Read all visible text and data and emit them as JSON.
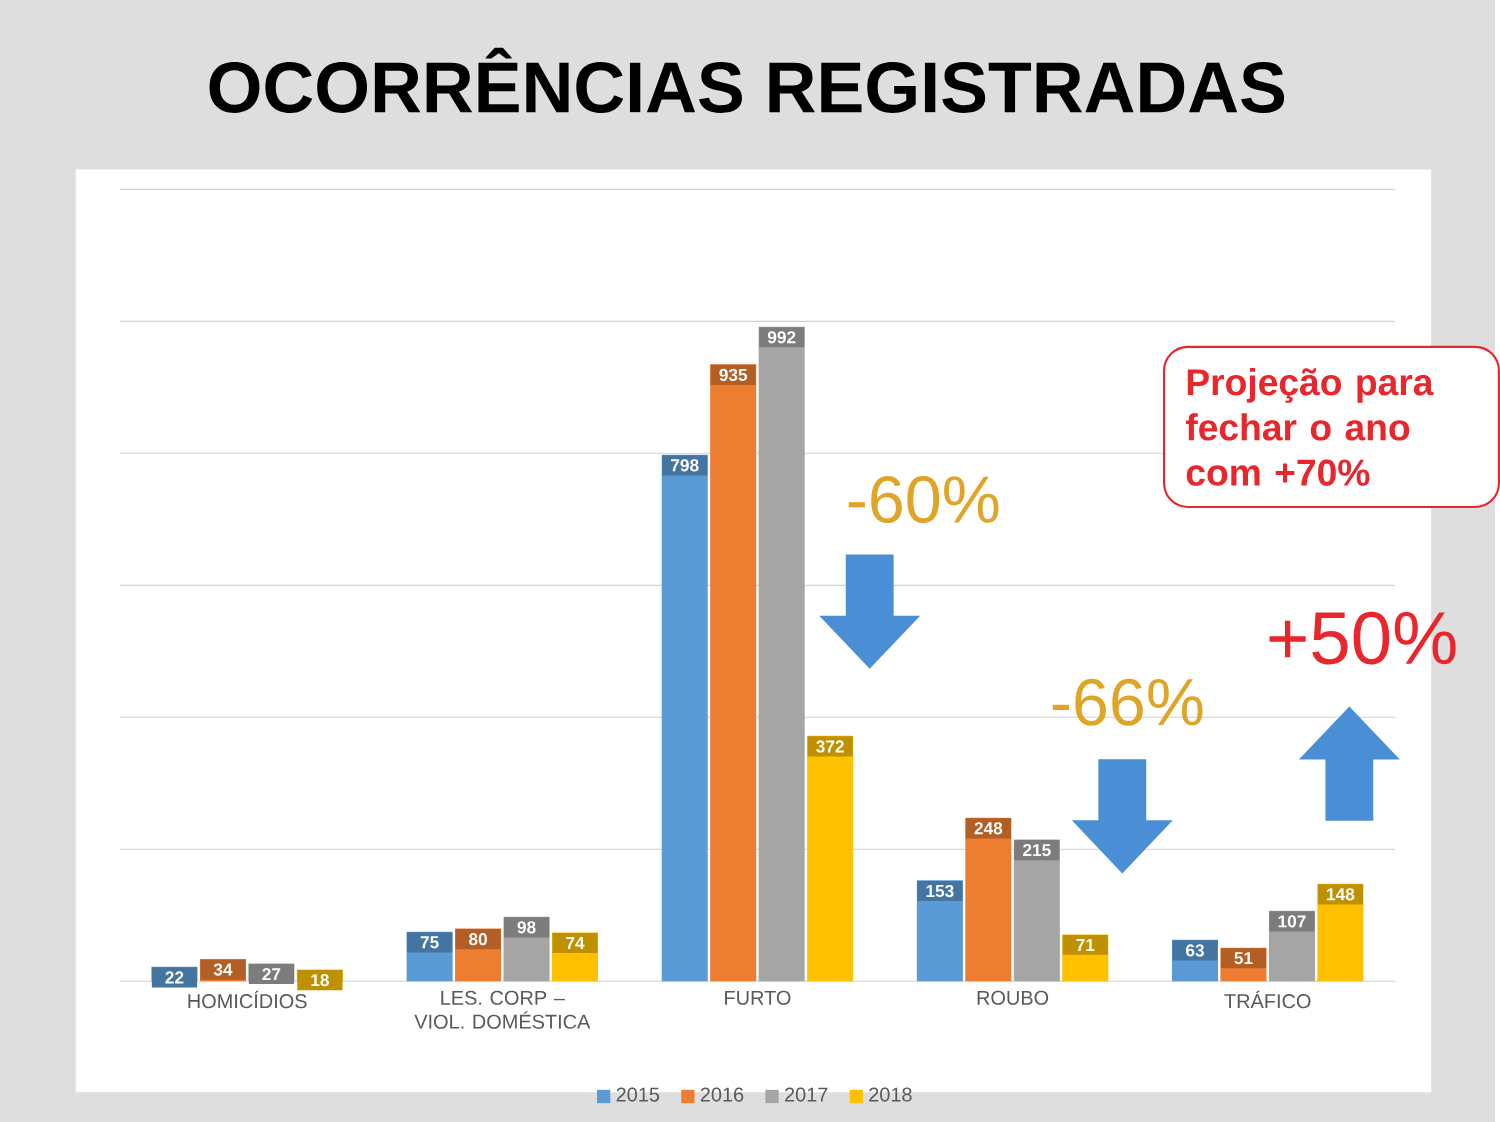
{
  "chart_data": {
    "type": "bar",
    "title": "OCORRÊNCIAS REGISTRADAS",
    "categories": [
      "HOMICÍDIOS",
      "LES. CORP – VIOL. DOMÉSTICA",
      "FURTO",
      "ROUBO",
      "TRÁFICO"
    ],
    "series": [
      {
        "name": "2015",
        "color": "#5b9bd5",
        "values": [
          22,
          75,
          798,
          153,
          63
        ]
      },
      {
        "name": "2016",
        "color": "#ed7d31",
        "values": [
          34,
          80,
          935,
          248,
          51
        ]
      },
      {
        "name": "2017",
        "color": "#a5a5a5",
        "values": [
          27,
          98,
          992,
          215,
          107
        ]
      },
      {
        "name": "2018",
        "color": "#ffc000",
        "values": [
          18,
          74,
          372,
          71,
          148
        ]
      }
    ],
    "ylim": [
      0,
      1200
    ],
    "yticks": [
      {
        "value": 0,
        "label": null
      },
      {
        "value": 200,
        "label": null
      },
      {
        "value": 400,
        "label": null
      },
      {
        "value": 600,
        "label": null
      },
      {
        "value": 800,
        "label": null
      },
      {
        "value": 1000,
        "label": null
      },
      {
        "value": 1200,
        "label": null
      }
    ],
    "grid": "y",
    "tick_labels": "x",
    "legend": "bottom",
    "data_labels": true,
    "annotations": [
      "-60%",
      "-66%",
      "+50%",
      "Projeção para fechar o ano com +70%"
    ]
  }
}
